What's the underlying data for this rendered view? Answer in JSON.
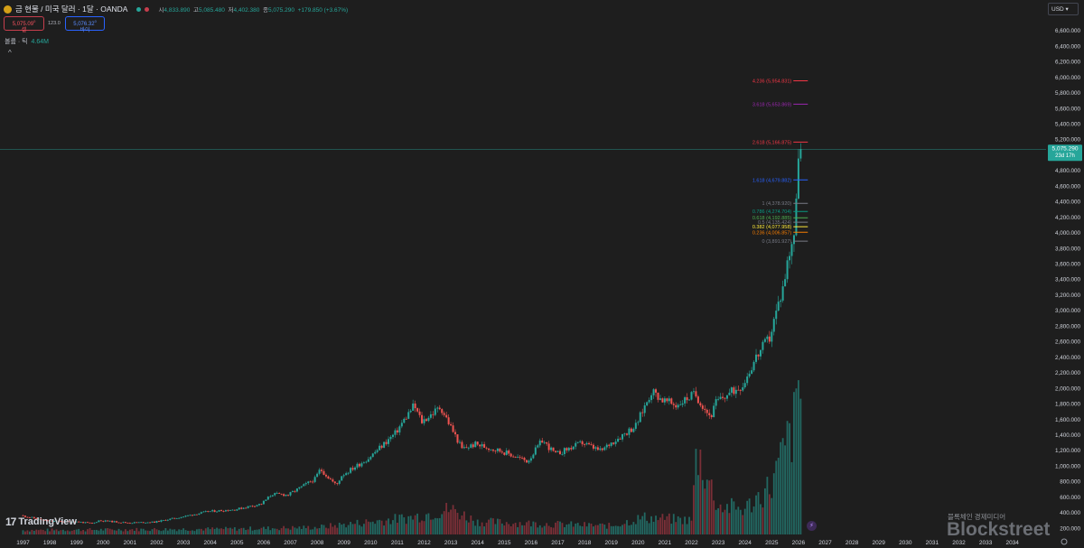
{
  "header": {
    "symbol_title": "금 현물 / 미국 달러 · 1달 · OANDA",
    "ohlc": {
      "o_label": "시",
      "o": "4,833.890",
      "h_label": "고",
      "h": "5,085.480",
      "l_label": "저",
      "l": "4,402.380",
      "c_label": "종",
      "c": "5,075.290",
      "change": "+179.850 (+3.67%)"
    }
  },
  "trade": {
    "sell_price": "5,075.09",
    "sell_sup": "0",
    "sell_label": "셀",
    "spread": "123.0",
    "buy_price": "5,076.32",
    "buy_sup": "0",
    "buy_label": "바이"
  },
  "volume_legend": {
    "label": "볼륨 · 틱",
    "value": "4.64M"
  },
  "currency_selector": "USD",
  "collapse_symbol": "^",
  "brand": {
    "logo_mark": "17",
    "name": "TradingView"
  },
  "watermark": {
    "small": "블록체인 경제미디어",
    "large": "Blockstreet"
  },
  "flash_icon": "⚡",
  "chart_data": {
    "type": "candlestick",
    "y_axis": {
      "min": 200,
      "max": 7000,
      "side": "right",
      "ticks": [
        "6,600.000",
        "6,400.000",
        "6,200.000",
        "6,000.000",
        "5,800.000",
        "5,600.000",
        "5,400.000",
        "5,200.000",
        "5,000.000",
        "4,800.000",
        "4,600.000",
        "4,400.000",
        "4,200.000",
        "4,000.000",
        "3,800.000",
        "3,600.000",
        "3,400.000",
        "3,200.000",
        "3,000.000",
        "2,800.000",
        "2,600.000",
        "2,400.000",
        "2,200.000",
        "2,000.000",
        "1,800.000",
        "1,600.000",
        "1,400.000",
        "1,200.000",
        "1,000.000",
        "800.000",
        "600.000",
        "400.000",
        "200.000"
      ]
    },
    "x_axis": {
      "years": [
        "1997",
        "1998",
        "1999",
        "2000",
        "2001",
        "2002",
        "2003",
        "2004",
        "2005",
        "2006",
        "2007",
        "2008",
        "2009",
        "2010",
        "2011",
        "2012",
        "2013",
        "2014",
        "2015",
        "2016",
        "2017",
        "2018",
        "2019",
        "2020",
        "2021",
        "2022",
        "2023",
        "2024",
        "2025",
        "2026",
        "2027",
        "2028",
        "2029",
        "2030",
        "2031",
        "2032",
        "2033",
        "2034"
      ]
    },
    "last_price": {
      "value": 5075.29,
      "label": "5,075.290",
      "countdown": "23d 17h"
    },
    "fibonacci": [
      {
        "ratio": "4.236",
        "price": 5954.831,
        "label": "4.236 (5,954.831)",
        "color": "#f23645"
      },
      {
        "ratio": "3.618",
        "price": 5653.869,
        "label": "3.618 (5,653.869)",
        "color": "#9c27b0"
      },
      {
        "ratio": "2.618",
        "price": 5166.875,
        "label": "2.618 (5,166.875)",
        "color": "#f23645"
      },
      {
        "ratio": "1.618",
        "price": 4679.882,
        "label": "1.618 (4,679.882)",
        "color": "#2962ff"
      },
      {
        "ratio": "1",
        "price": 4378.92,
        "label": "1 (4,378.920)",
        "color": "#787b86"
      },
      {
        "ratio": "0.786",
        "price": 4274.704,
        "label": "0.786 (4,274.704)",
        "color": "#089981"
      },
      {
        "ratio": "0.618",
        "price": 4192.885,
        "label": "0.618 (4,192.885)",
        "color": "#4caf50"
      },
      {
        "ratio": "0.5",
        "price": 4135.424,
        "label": "0.5 (4,135.424)",
        "color": "#787b86"
      },
      {
        "ratio": "0.382",
        "price": 4077.958,
        "label": "0.382 (4,077.958)",
        "color": "#ffeb3b"
      },
      {
        "ratio": "0.236",
        "price": 4006.857,
        "label": "0.236 (4,006.857)",
        "color": "#f57c00"
      },
      {
        "ratio": "0",
        "price": 3891.927,
        "label": "0 (3,891.927)",
        "color": "#787b86"
      }
    ],
    "anchors": [
      {
        "t": 1997.0,
        "v": 365
      },
      {
        "t": 1998.0,
        "v": 292
      },
      {
        "t": 1999.0,
        "v": 287
      },
      {
        "t": 1999.7,
        "v": 260
      },
      {
        "t": 1999.9,
        "v": 300
      },
      {
        "t": 2001.0,
        "v": 270
      },
      {
        "t": 2002.0,
        "v": 280
      },
      {
        "t": 2003.0,
        "v": 345
      },
      {
        "t": 2004.0,
        "v": 415
      },
      {
        "t": 2005.0,
        "v": 440
      },
      {
        "t": 2006.0,
        "v": 515
      },
      {
        "t": 2006.4,
        "v": 640
      },
      {
        "t": 2007.0,
        "v": 630
      },
      {
        "t": 2008.0,
        "v": 835
      },
      {
        "t": 2008.2,
        "v": 960
      },
      {
        "t": 2008.8,
        "v": 750
      },
      {
        "t": 2009.0,
        "v": 880
      },
      {
        "t": 2010.0,
        "v": 1100
      },
      {
        "t": 2011.0,
        "v": 1420
      },
      {
        "t": 2011.7,
        "v": 1780
      },
      {
        "t": 2012.0,
        "v": 1570
      },
      {
        "t": 2012.7,
        "v": 1760
      },
      {
        "t": 2013.5,
        "v": 1220
      },
      {
        "t": 2014.0,
        "v": 1280
      },
      {
        "t": 2015.0,
        "v": 1190
      },
      {
        "t": 2015.95,
        "v": 1060
      },
      {
        "t": 2016.5,
        "v": 1330
      },
      {
        "t": 2017.0,
        "v": 1150
      },
      {
        "t": 2018.0,
        "v": 1300
      },
      {
        "t": 2018.7,
        "v": 1190
      },
      {
        "t": 2019.0,
        "v": 1280
      },
      {
        "t": 2020.0,
        "v": 1520
      },
      {
        "t": 2020.6,
        "v": 1970
      },
      {
        "t": 2021.0,
        "v": 1850
      },
      {
        "t": 2021.5,
        "v": 1780
      },
      {
        "t": 2022.2,
        "v": 1930
      },
      {
        "t": 2022.8,
        "v": 1630
      },
      {
        "t": 2023.0,
        "v": 1820
      },
      {
        "t": 2024.0,
        "v": 2050
      },
      {
        "t": 2024.5,
        "v": 2400
      },
      {
        "t": 2025.0,
        "v": 2650
      },
      {
        "t": 2025.5,
        "v": 3300
      },
      {
        "t": 2025.8,
        "v": 3860
      },
      {
        "t": 2025.92,
        "v": 4000
      },
      {
        "t": 2026.0,
        "v": 4350
      },
      {
        "t": 2026.08,
        "v": 5075
      }
    ],
    "volume_anchors": [
      {
        "t": 1997.0,
        "v": 0.03
      },
      {
        "t": 2005.0,
        "v": 0.04
      },
      {
        "t": 2008.0,
        "v": 0.05
      },
      {
        "t": 2011.5,
        "v": 0.12
      },
      {
        "t": 2013.0,
        "v": 0.18
      },
      {
        "t": 2014.0,
        "v": 0.09
      },
      {
        "t": 2019.0,
        "v": 0.06
      },
      {
        "t": 2020.2,
        "v": 0.12
      },
      {
        "t": 2022.0,
        "v": 0.1
      },
      {
        "t": 2022.2,
        "v": 0.6
      },
      {
        "t": 2023.0,
        "v": 0.2
      },
      {
        "t": 2024.0,
        "v": 0.18
      },
      {
        "t": 2025.0,
        "v": 0.35
      },
      {
        "t": 2025.9,
        "v": 0.8
      },
      {
        "t": 2026.0,
        "v": 1.0
      }
    ]
  }
}
